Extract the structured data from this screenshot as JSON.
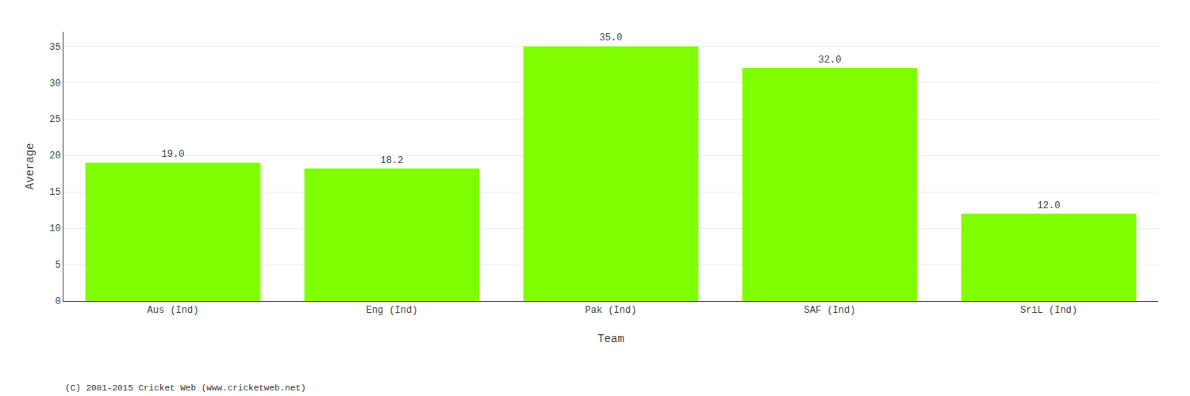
{
  "chart_data": {
    "type": "bar",
    "categories": [
      "Aus (Ind)",
      "Eng (Ind)",
      "Pak (Ind)",
      "SAF (Ind)",
      "SriL (Ind)"
    ],
    "values": [
      19.0,
      18.2,
      35.0,
      32.0,
      12.0
    ],
    "value_labels": [
      "19.0",
      "18.2",
      "35.0",
      "32.0",
      "12.0"
    ],
    "data_labels": true,
    "color": "#7fff00",
    "xlabel": "Team",
    "ylabel": "Average",
    "ylim": [
      0,
      37
    ],
    "yticks": [
      0,
      5,
      10,
      15,
      20,
      25,
      30,
      35
    ],
    "grid": true,
    "annotations": [
      "(C) 2001-2015 Cricket Web (www.cricketweb.net)"
    ]
  }
}
